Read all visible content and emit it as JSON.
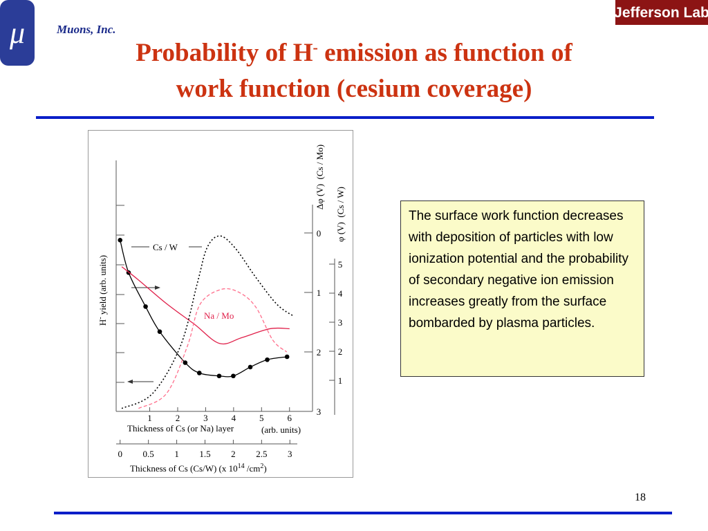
{
  "header": {
    "logo_symbol": "μ",
    "company": "Muons, Inc.",
    "lab": "Jefferson Lab",
    "title_start": "Probability of H",
    "title_sup": "-",
    "title_end": " emission as function of",
    "title_line2": "work function (cesium coverage)"
  },
  "chart_data": {
    "type": "line",
    "xlabel": "Thickness of Cs (or Na) layer",
    "xlabel_units": "(arb. units)",
    "xlim": [
      -0.2,
      6.6
    ],
    "xticks": [
      1,
      2,
      3,
      4,
      5,
      6
    ],
    "x2label_start": "Thickness of Cs (Cs/W) (x 10",
    "x2label_exp": "14",
    "x2label_mid": " /cm",
    "x2label_exp2": "2",
    "x2label_end": ")",
    "x2lim": [
      -0.07,
      3.29
    ],
    "x2ticks": [
      0,
      0.5,
      1,
      1.5,
      2,
      2.5,
      3
    ],
    "ylabel_start": "H",
    "ylabel_sup": "-",
    "ylabel_end": " yield (arb. units)",
    "ylim": [
      0,
      8.5
    ],
    "y2label": "Δφ (V)  (Cs / Mo)",
    "y2lim": [
      3.0,
      -1.22
    ],
    "y2ticks": [
      0,
      1,
      2,
      3
    ],
    "y3label": "φ (V)  (Cs / W)",
    "y3lim": [
      -0.07,
      8.57
    ],
    "y3ticks": [
      5,
      4,
      3,
      2,
      1
    ],
    "series": [
      {
        "name": "Cs / W",
        "color": "#000000",
        "markers": true,
        "xaxis": "x2",
        "x": [
          0,
          0.15,
          0.45,
          0.7,
          1.15,
          1.4,
          1.75,
          2.0,
          2.3,
          2.6,
          2.95
        ],
        "values": [
          5.8,
          4.7,
          3.55,
          2.7,
          1.65,
          1.3,
          1.2,
          1.2,
          1.5,
          1.75,
          1.85
        ]
      },
      {
        "name": "Na / Mo",
        "color": "#e0204a",
        "x": [
          0,
          0.6,
          1.6,
          2.6,
          3.5,
          4.3,
          5.3,
          6.0
        ],
        "values": [
          4.9,
          4.45,
          3.65,
          2.95,
          2.3,
          2.5,
          2.8,
          2.8
        ]
      },
      {
        "color": "#000000",
        "dash": "dot",
        "axis": "y2",
        "x": [
          0,
          1.1,
          2.1,
          2.7,
          3.05,
          3.5,
          4.05,
          4.8,
          5.55,
          6.15
        ],
        "values": [
          2.95,
          2.7,
          1.9,
          0.85,
          0.25,
          0.05,
          0.25,
          0.75,
          1.2,
          1.4
        ]
      },
      {
        "color": "#ff6f8c",
        "dash": "dash",
        "axis": "y2",
        "x": [
          0.6,
          1.6,
          2.35,
          2.8,
          3.55,
          4.2,
          4.8,
          5.4,
          5.9
        ],
        "values": [
          2.95,
          2.7,
          1.9,
          1.2,
          0.95,
          1.0,
          1.25,
          1.8,
          2.0
        ]
      }
    ]
  },
  "note": "The surface work function decreases with deposition of particles with low ionization potential and the probability of secondary negative ion emission increases greatly from the surface bombarded by plasma particles.",
  "page_number": "18"
}
